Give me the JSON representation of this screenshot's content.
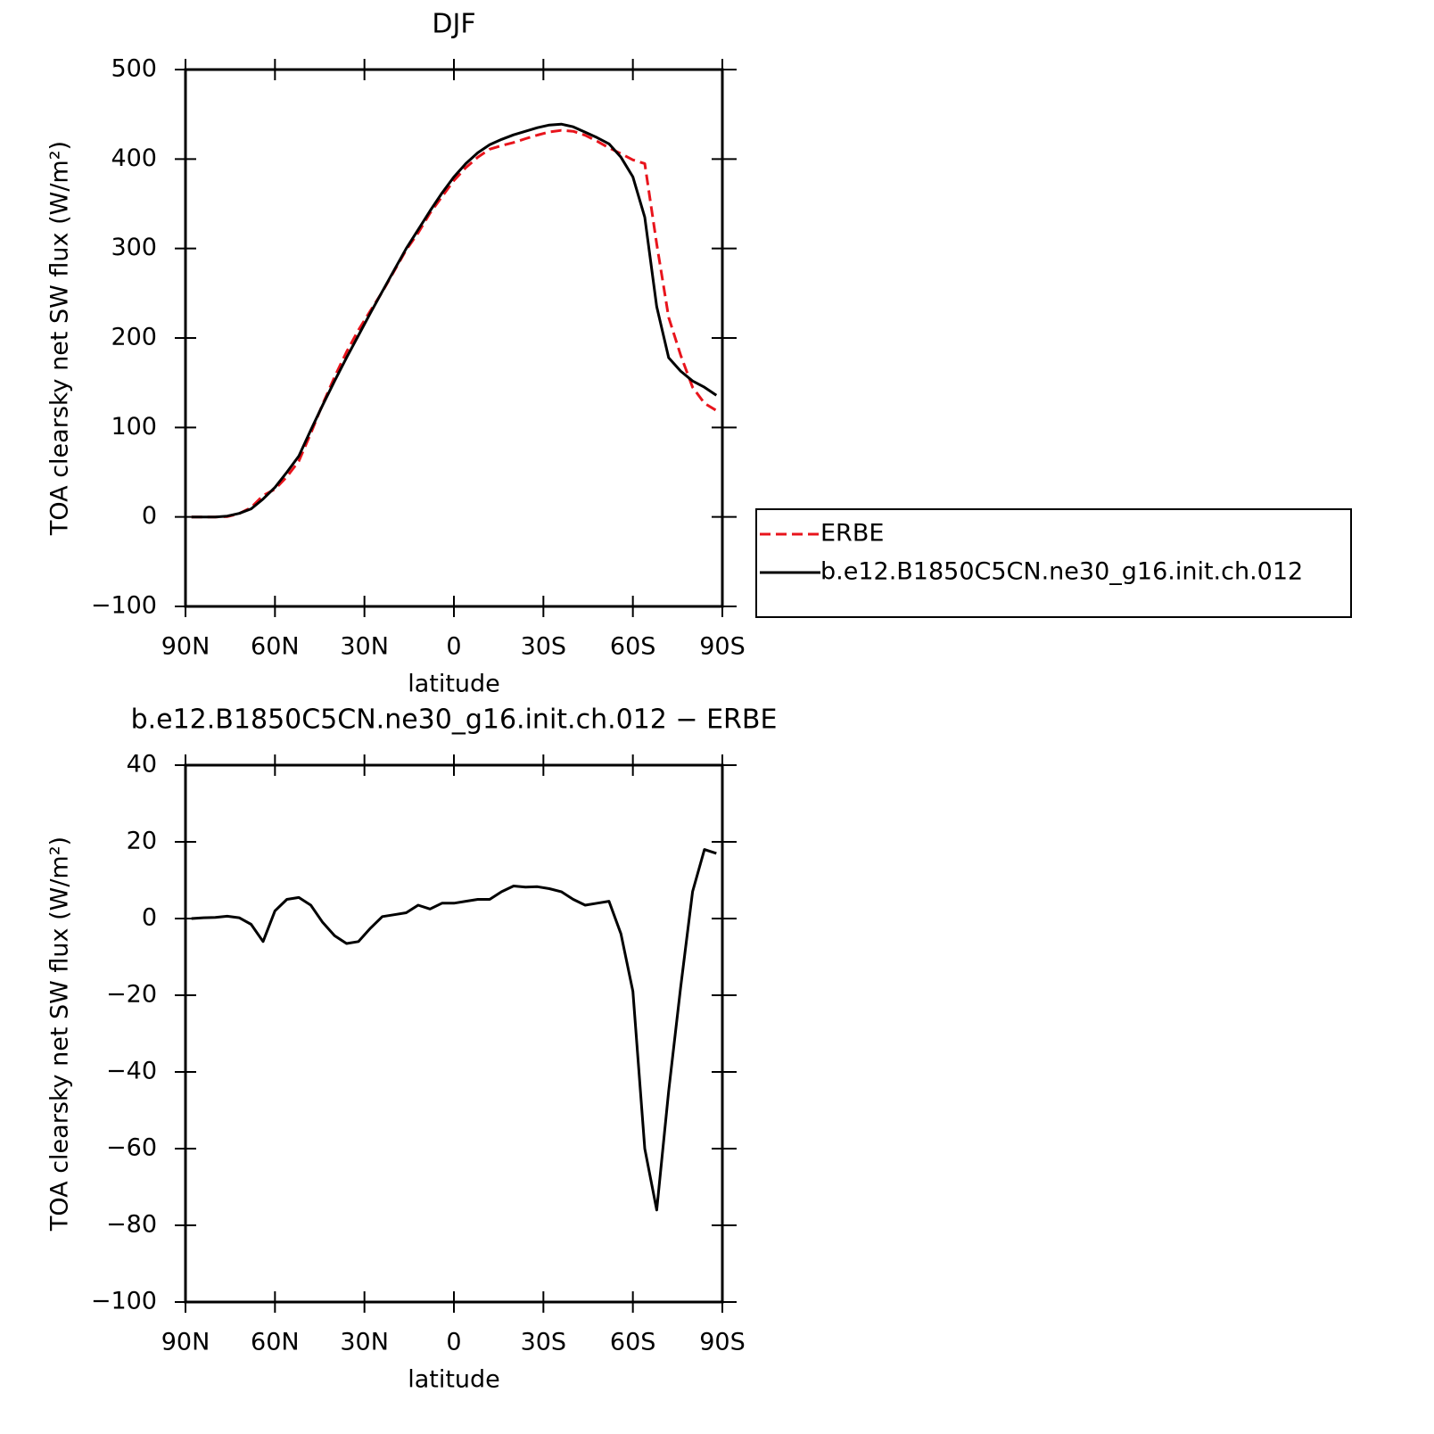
{
  "chart_data": [
    {
      "type": "line",
      "title": "DJF",
      "xlabel": "latitude",
      "ylabel": "TOA clearsky net SW flux (W/m²)",
      "x": [
        88,
        84,
        80,
        76,
        72,
        68,
        64,
        60,
        56,
        52,
        48,
        44,
        40,
        36,
        32,
        28,
        24,
        20,
        16,
        12,
        8,
        4,
        0,
        -4,
        -8,
        -12,
        -16,
        -20,
        -24,
        -28,
        -32,
        -36,
        -40,
        -44,
        -48,
        -52,
        -56,
        -60,
        -64,
        -68,
        -72,
        -76,
        -80,
        -84,
        -88
      ],
      "series": [
        {
          "name": "ERBE",
          "color": "#e8141c",
          "linestyle": "dashed",
          "values": [
            0,
            0,
            0,
            0.4,
            3.8,
            10.5,
            24,
            31,
            45,
            62.5,
            93.5,
            126,
            156.5,
            184.5,
            209,
            230.5,
            251.5,
            275,
            298.5,
            317.5,
            339.5,
            358,
            376,
            390.5,
            402,
            411,
            415,
            418.5,
            422.8,
            426.7,
            430.2,
            432,
            431,
            426.5,
            420,
            412.5,
            406,
            399,
            395,
            305,
            223,
            181,
            145,
            127,
            119
          ]
        },
        {
          "name": "b.e12.B1850C5CN.ne30_g16.init.ch.012",
          "color": "#000000",
          "linestyle": "solid",
          "values": [
            0,
            0,
            0,
            1,
            4,
            9,
            20,
            33,
            50,
            68,
            97,
            125,
            152,
            178,
            203,
            228,
            252,
            276,
            300,
            321,
            342,
            362,
            380,
            395,
            407,
            416,
            422,
            427,
            431,
            435,
            438,
            439,
            436,
            430,
            424,
            417,
            402,
            380,
            335,
            235,
            178,
            163,
            152,
            145,
            136
          ]
        }
      ],
      "xlim": [
        90,
        -90
      ],
      "xticks": [
        {
          "value": 90,
          "label": "90N"
        },
        {
          "value": 60,
          "label": "60N"
        },
        {
          "value": 30,
          "label": "30N"
        },
        0,
        {
          "value": -30,
          "label": "30S"
        },
        {
          "value": -60,
          "label": "60S"
        },
        {
          "value": -90,
          "label": "90S"
        }
      ],
      "ylim": [
        -100,
        500
      ],
      "yticks": [
        {
          "value": -100,
          "label": "−100"
        },
        0,
        100,
        200,
        300,
        400,
        500
      ],
      "legend": "right"
    },
    {
      "type": "line",
      "title": "b.e12.B1850C5CN.ne30_g16.init.ch.012 − ERBE",
      "xlabel": "latitude",
      "ylabel": "TOA clearsky net SW flux (W/m²)",
      "x": [
        88,
        84,
        80,
        76,
        72,
        68,
        64,
        60,
        56,
        52,
        48,
        44,
        40,
        36,
        32,
        28,
        24,
        20,
        16,
        12,
        8,
        4,
        0,
        -4,
        -8,
        -12,
        -16,
        -20,
        -24,
        -28,
        -32,
        -36,
        -40,
        -44,
        -48,
        -52,
        -56,
        -60,
        -64,
        -68,
        -72,
        -76,
        -80,
        -84,
        -88
      ],
      "series": [
        {
          "color": "#000000",
          "linestyle": "solid",
          "values": [
            0,
            0.2,
            0.3,
            0.6,
            0.2,
            -1.5,
            -6,
            2,
            5,
            5.5,
            3.5,
            -1,
            -4.5,
            -6.5,
            -6,
            -2.5,
            0.5,
            1,
            1.5,
            3.5,
            2.5,
            4,
            4,
            4.5,
            5,
            5,
            7,
            8.5,
            8.2,
            8.3,
            7.8,
            7,
            5,
            3.5,
            4,
            4.5,
            -4,
            -19,
            -60,
            -76,
            -45,
            -18,
            7,
            18,
            17
          ]
        }
      ],
      "xlim": [
        90,
        -90
      ],
      "xticks": [
        {
          "value": 90,
          "label": "90N"
        },
        {
          "value": 60,
          "label": "60N"
        },
        {
          "value": 30,
          "label": "30N"
        },
        0,
        {
          "value": -30,
          "label": "30S"
        },
        {
          "value": -60,
          "label": "60S"
        },
        {
          "value": -90,
          "label": "90S"
        }
      ],
      "ylim": [
        -100,
        40
      ],
      "yticks": [
        {
          "value": -100,
          "label": "−100"
        },
        {
          "value": -80,
          "label": "−80"
        },
        {
          "value": -60,
          "label": "−60"
        },
        {
          "value": -40,
          "label": "−40"
        },
        {
          "value": -20,
          "label": "−20"
        },
        0,
        20,
        40
      ]
    }
  ]
}
